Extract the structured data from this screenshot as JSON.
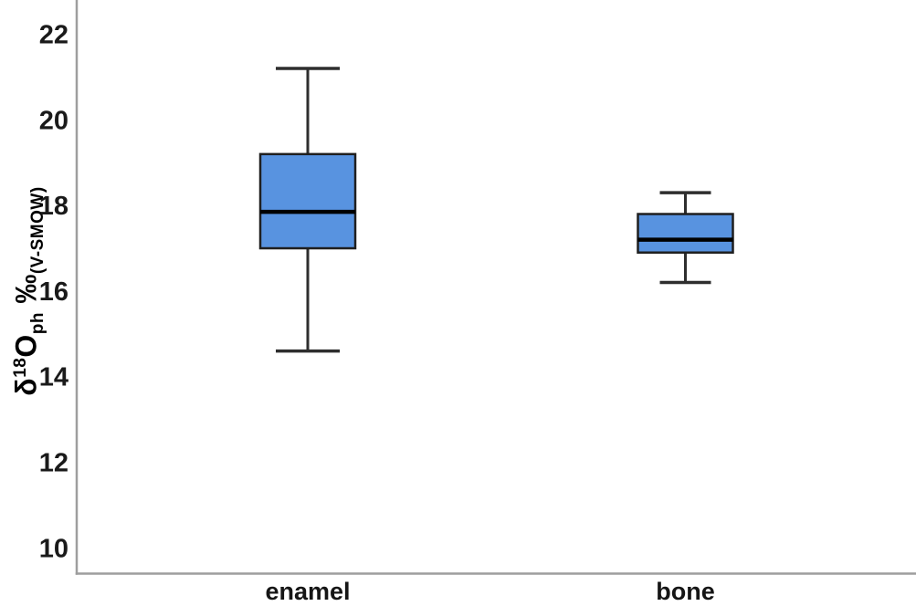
{
  "figure": {
    "background": "#ffffff",
    "y_axis_label": {
      "delta": "δ",
      "isotope": "18",
      "element": "O",
      "phase": "ph",
      "permil": "‰",
      "reference": "(V-SMOW)"
    }
  },
  "chart_data": {
    "type": "boxplot",
    "title": "",
    "xlabel": "",
    "ylabel": "δ18Oph ‰(V-SMOW)",
    "categories": [
      "enamel",
      "bone"
    ],
    "series": [
      {
        "name": "enamel",
        "whisker_low": 14.6,
        "q1": 17.0,
        "median": 17.85,
        "q3": 19.2,
        "whisker_high": 21.2
      },
      {
        "name": "bone",
        "whisker_low": 16.2,
        "q1": 16.9,
        "median": 17.2,
        "q3": 17.8,
        "whisker_high": 18.3
      }
    ],
    "yticks": [
      22,
      20,
      18,
      16,
      14,
      12,
      10
    ],
    "ylim": [
      9.4,
      22.8
    ],
    "grid": false,
    "legend": false,
    "colors": {
      "box_fill": "#5893e0",
      "box_border": "#1f1f1f",
      "median": "#000000",
      "whisker": "#2e2e2e",
      "axis": "#9e9e9e",
      "tick_text": "#1a1a1a",
      "category_text": "#151515"
    }
  }
}
